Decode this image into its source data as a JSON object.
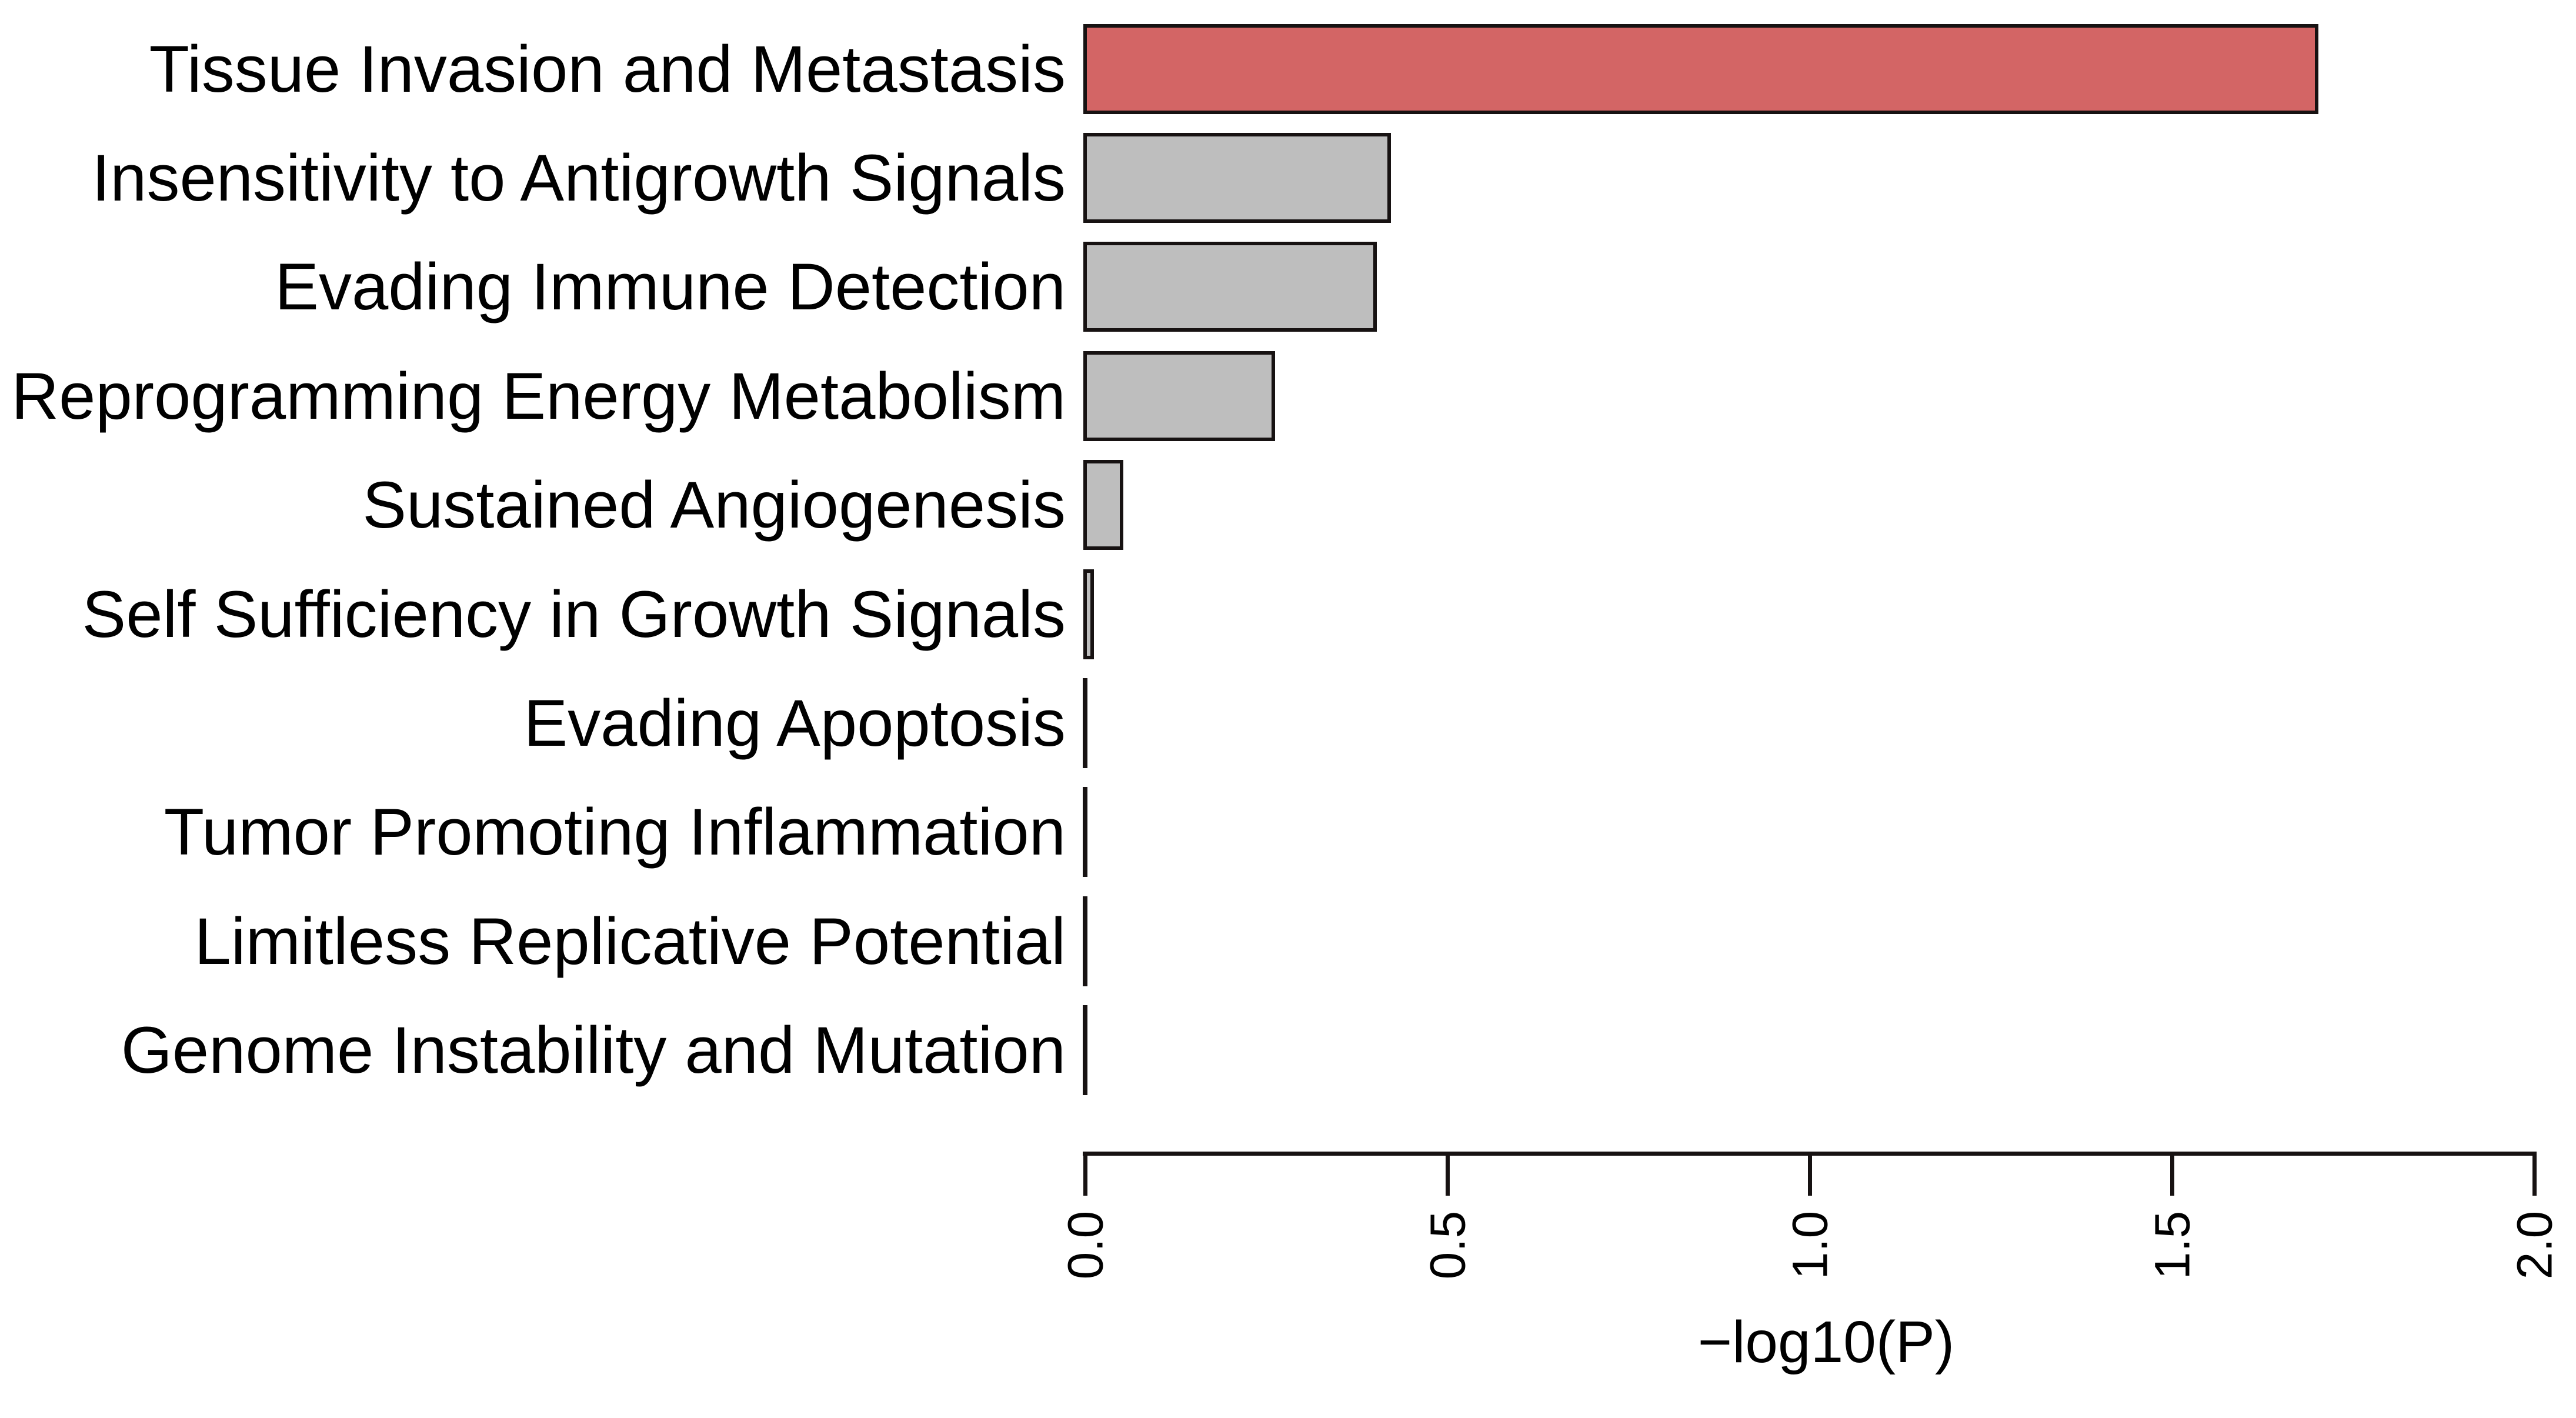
{
  "chart_data": {
    "type": "bar",
    "orientation": "horizontal",
    "title": "",
    "xlabel": "−log10(P)",
    "ylabel": "",
    "xlim": [
      0,
      2.0
    ],
    "x_tick_labels": [
      "0.0",
      "0.5",
      "1.0",
      "1.5",
      "2.0"
    ],
    "x_tick_values": [
      0,
      0.5,
      1.0,
      1.5,
      2.0
    ],
    "grid": false,
    "legend": "none",
    "categories": [
      "Tissue Invasion and Metastasis",
      "Insensitivity to Antigrowth Signals",
      "Evading Immune Detection",
      "Reprogramming Energy Metabolism",
      "Sustained Angiogenesis",
      "Self Sufficiency in Growth Signals",
      "Evading Apoptosis",
      "Tumor Promoting Inflammation",
      "Limitless Replicative Potential",
      "Genome Instability and Mutation"
    ],
    "values": [
      1.7,
      0.42,
      0.4,
      0.26,
      0.05,
      0.01,
      0,
      0,
      0,
      0
    ],
    "bar_colors": [
      "#D36565",
      "#BEBEBE",
      "#BEBEBE",
      "#BEBEBE",
      "#BEBEBE",
      "#BEBEBE",
      "#BEBEBE",
      "#BEBEBE",
      "#BEBEBE",
      "#BEBEBE"
    ],
    "highlight_color": "#D36565",
    "default_color": "#BEBEBE",
    "border_color": "#171212"
  }
}
